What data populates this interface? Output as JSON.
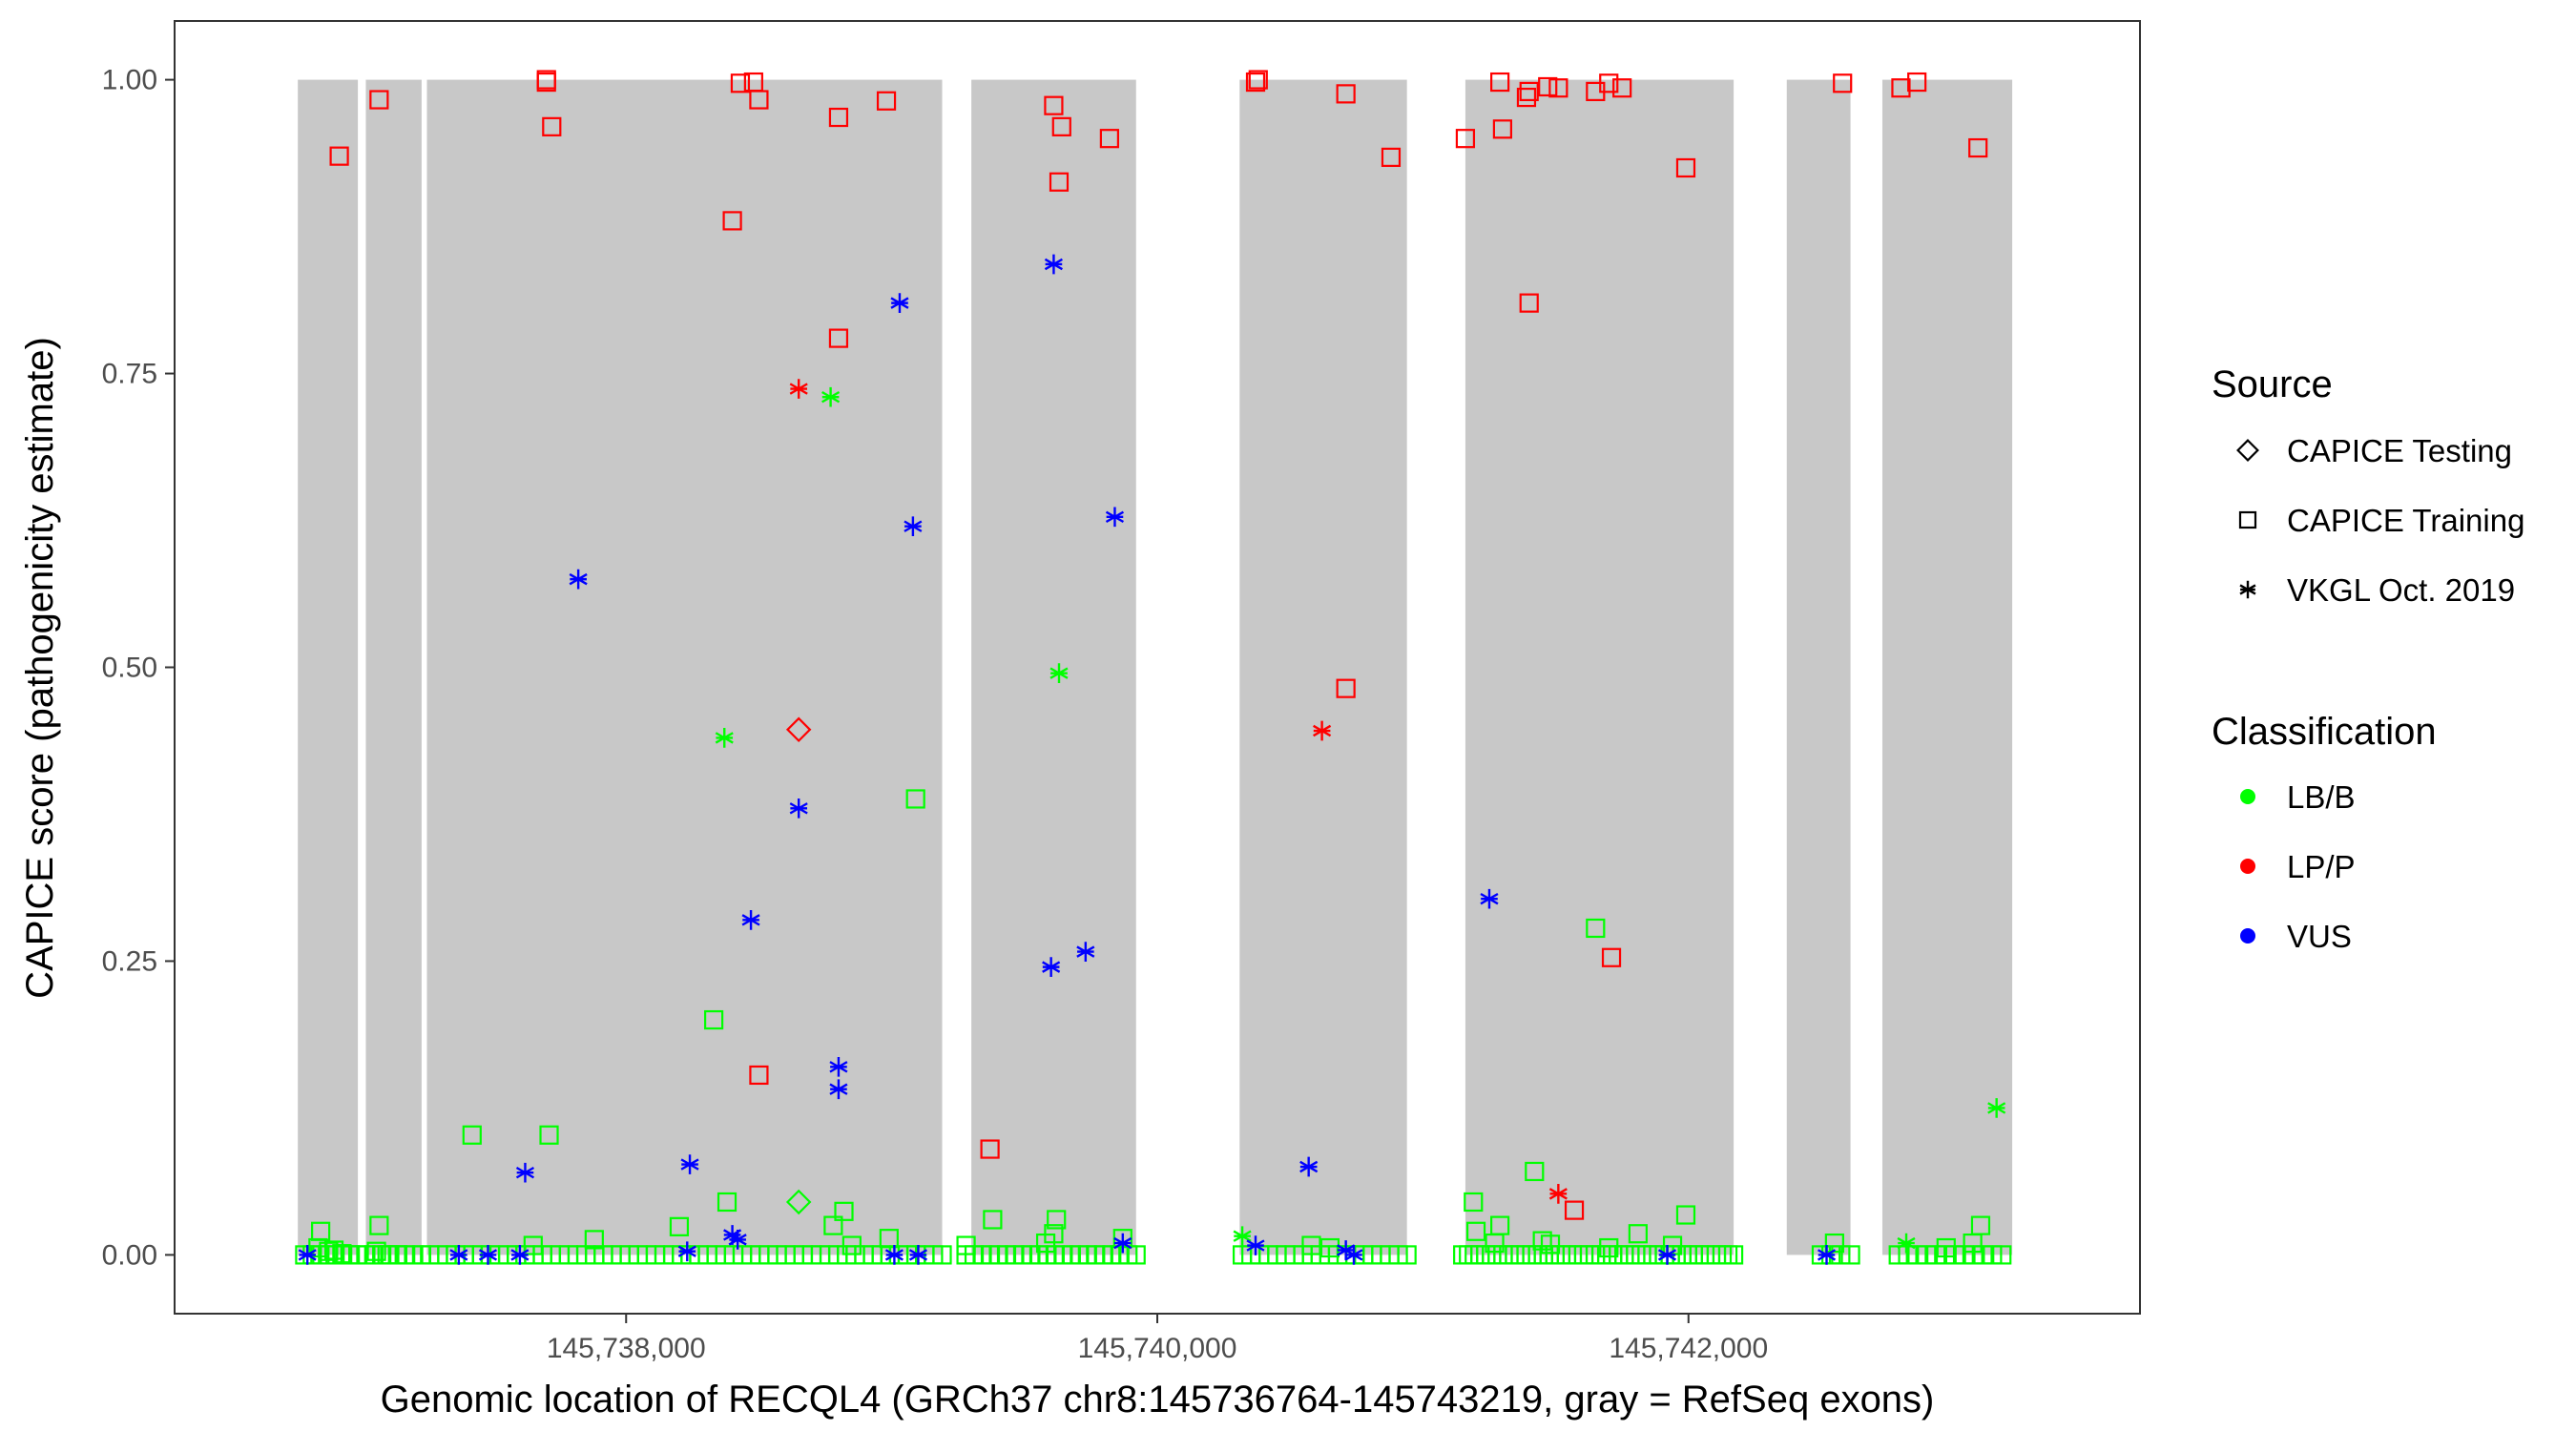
{
  "chart_data": {
    "type": "scatter",
    "title": "",
    "xlabel": "Genomic location of RECQL4 (GRCh37 chr8:145736764-145743219, gray = RefSeq exons)",
    "ylabel": "CAPICE score (pathogenicity estimate)",
    "xlim": [
      145736300,
      145743700
    ],
    "ylim": [
      -0.05,
      1.05
    ],
    "x_ticks": [
      145738000,
      145740000,
      145742000
    ],
    "x_tick_labels": [
      "145,738,000",
      "145,740,000",
      "145,742,000"
    ],
    "y_ticks": [
      0,
      0.25,
      0.5,
      0.75,
      1.0
    ],
    "y_tick_labels": [
      "0.00",
      "0.25",
      "0.50",
      "0.75",
      "1.00"
    ],
    "exons": [
      [
        145736764,
        145736990
      ],
      [
        145737020,
        145737230
      ],
      [
        145737250,
        145739190
      ],
      [
        145739300,
        145739920
      ],
      [
        145740310,
        145740940
      ],
      [
        145741160,
        145742170
      ],
      [
        145742370,
        145742610
      ],
      [
        145742730,
        145743219
      ]
    ],
    "legend": {
      "source_title": "Source",
      "sources": [
        {
          "label": "CAPICE Testing",
          "shape": "diamond"
        },
        {
          "label": "CAPICE Training",
          "shape": "square"
        },
        {
          "label": "VKGL Oct. 2019",
          "shape": "asterisk"
        }
      ],
      "class_title": "Classification",
      "classes": [
        {
          "label": "LB/B",
          "color": "#00ff00"
        },
        {
          "label": "LP/P",
          "color": "#ff0000"
        },
        {
          "label": "VUS",
          "color": "#0000ff"
        }
      ]
    },
    "series": [
      {
        "name": "LP/P CAPICE Training",
        "shape": "square",
        "color": "#ff0000",
        "points": [
          [
            145736920,
            0.935
          ],
          [
            145737070,
            0.983
          ],
          [
            145737700,
            0.998
          ],
          [
            145737700,
            1.0
          ],
          [
            145737720,
            0.96
          ],
          [
            145738400,
            0.88
          ],
          [
            145738430,
            0.997
          ],
          [
            145738480,
            0.998
          ],
          [
            145738500,
            0.983
          ],
          [
            145738800,
            0.968
          ],
          [
            145738980,
            0.982
          ],
          [
            145738500,
            0.153
          ],
          [
            145738800,
            0.78
          ],
          [
            145739610,
            0.978
          ],
          [
            145739640,
            0.96
          ],
          [
            145739630,
            0.913
          ],
          [
            145739820,
            0.95
          ],
          [
            145739370,
            0.09
          ],
          [
            145740370,
            0.998
          ],
          [
            145740380,
            1.0
          ],
          [
            145740710,
            0.988
          ],
          [
            145740880,
            0.934
          ],
          [
            145740710,
            0.482
          ],
          [
            145741160,
            0.95
          ],
          [
            145741290,
            0.998
          ],
          [
            145741300,
            0.958
          ],
          [
            145741390,
            0.985
          ],
          [
            145741400,
            0.99
          ],
          [
            145741470,
            0.994
          ],
          [
            145741510,
            0.993
          ],
          [
            145741650,
            0.99
          ],
          [
            145741700,
            0.997
          ],
          [
            145741750,
            0.993
          ],
          [
            145741990,
            0.925
          ],
          [
            145741400,
            0.81
          ],
          [
            145741710,
            0.253
          ],
          [
            145741570,
            0.038
          ],
          [
            145742580,
            0.997
          ],
          [
            145742800,
            0.993
          ],
          [
            145742860,
            0.998
          ],
          [
            145743090,
            0.942
          ]
        ]
      },
      {
        "name": "LP/P CAPICE Testing",
        "shape": "diamond",
        "color": "#ff0000",
        "points": [
          [
            145738650,
            0.447
          ]
        ]
      },
      {
        "name": "LP/P VKGL",
        "shape": "asterisk",
        "color": "#ff0000",
        "points": [
          [
            145738650,
            0.737
          ],
          [
            145740620,
            0.446
          ],
          [
            145741510,
            0.052
          ]
        ]
      },
      {
        "name": "VUS VKGL",
        "shape": "asterisk",
        "color": "#0000ff",
        "points": [
          [
            145736800,
            0.0
          ],
          [
            145737370,
            0.0
          ],
          [
            145737480,
            0.0
          ],
          [
            145737600,
            0.0
          ],
          [
            145737620,
            0.07
          ],
          [
            145737820,
            0.575
          ],
          [
            145738240,
            0.077
          ],
          [
            145738230,
            0.003
          ],
          [
            145738400,
            0.017
          ],
          [
            145738420,
            0.013
          ],
          [
            145738470,
            0.285
          ],
          [
            145738650,
            0.38
          ],
          [
            145738800,
            0.16
          ],
          [
            145738800,
            0.141
          ],
          [
            145739030,
            0.81
          ],
          [
            145739080,
            0.62
          ],
          [
            145739010,
            0.0
          ],
          [
            145739100,
            0.0
          ],
          [
            145739600,
            0.245
          ],
          [
            145739610,
            0.843
          ],
          [
            145739730,
            0.258
          ],
          [
            145739840,
            0.628
          ],
          [
            145739870,
            0.01
          ],
          [
            145740370,
            0.008
          ],
          [
            145740570,
            0.075
          ],
          [
            145740710,
            0.004
          ],
          [
            145740740,
            0.0
          ],
          [
            145741250,
            0.303
          ],
          [
            145741920,
            0.0
          ],
          [
            145742520,
            0.0
          ]
        ]
      },
      {
        "name": "LB/B VKGL",
        "shape": "asterisk",
        "color": "#00ff00",
        "points": [
          [
            145738370,
            0.44
          ],
          [
            145738770,
            0.73
          ],
          [
            145739630,
            0.495
          ],
          [
            145740320,
            0.016
          ],
          [
            145742820,
            0.01
          ],
          [
            145743160,
            0.125
          ]
        ]
      },
      {
        "name": "LB/B CAPICE Testing",
        "shape": "diamond",
        "color": "#00ff00",
        "points": [
          [
            145738650,
            0.045
          ]
        ]
      },
      {
        "name": "LB/B CAPICE Training",
        "shape": "square",
        "color": "#00ff00",
        "points": [
          [
            145736850,
            0.02
          ],
          [
            145736840,
            0.006
          ],
          [
            145736880,
            0.003
          ],
          [
            145736900,
            0.004
          ],
          [
            145736930,
            0.001
          ],
          [
            145736960,
            0.0
          ],
          [
            145737070,
            0.025
          ],
          [
            145737060,
            0.003
          ],
          [
            145737100,
            0.0
          ],
          [
            145737140,
            0.0
          ],
          [
            145737420,
            0.102
          ],
          [
            145737710,
            0.102
          ],
          [
            145738330,
            0.2
          ],
          [
            145738380,
            0.045
          ],
          [
            145738780,
            0.025
          ],
          [
            145738820,
            0.037
          ],
          [
            145738850,
            0.008
          ],
          [
            145739090,
            0.388
          ],
          [
            145738990,
            0.014
          ],
          [
            145737880,
            0.013
          ],
          [
            145738200,
            0.024
          ],
          [
            145737650,
            0.008
          ],
          [
            145739380,
            0.03
          ],
          [
            145739620,
            0.03
          ],
          [
            145739610,
            0.018
          ],
          [
            145739580,
            0.01
          ],
          [
            145739280,
            0.008
          ],
          [
            145739870,
            0.014
          ],
          [
            145740580,
            0.008
          ],
          [
            145740650,
            0.006
          ],
          [
            145741190,
            0.045
          ],
          [
            145741200,
            0.02
          ],
          [
            145741290,
            0.025
          ],
          [
            145741270,
            0.01
          ],
          [
            145741420,
            0.071
          ],
          [
            145741450,
            0.012
          ],
          [
            145741650,
            0.278
          ],
          [
            145741810,
            0.018
          ],
          [
            145741990,
            0.034
          ],
          [
            145741940,
            0.008
          ],
          [
            145741700,
            0.006
          ],
          [
            145741480,
            0.009
          ],
          [
            145742550,
            0.01
          ],
          [
            145743100,
            0.025
          ],
          [
            145743070,
            0.01
          ],
          [
            145742970,
            0.006
          ]
        ],
        "baseline_ranges": [
          [
            145736790,
            145736990,
            8
          ],
          [
            145737020,
            145737230,
            8
          ],
          [
            145737260,
            145739190,
            60
          ],
          [
            145739280,
            145739920,
            22
          ],
          [
            145740320,
            145740940,
            20
          ],
          [
            145741150,
            145742170,
            48
          ],
          [
            145742500,
            145742610,
            4
          ],
          [
            145742790,
            145743180,
            12
          ]
        ]
      }
    ]
  }
}
